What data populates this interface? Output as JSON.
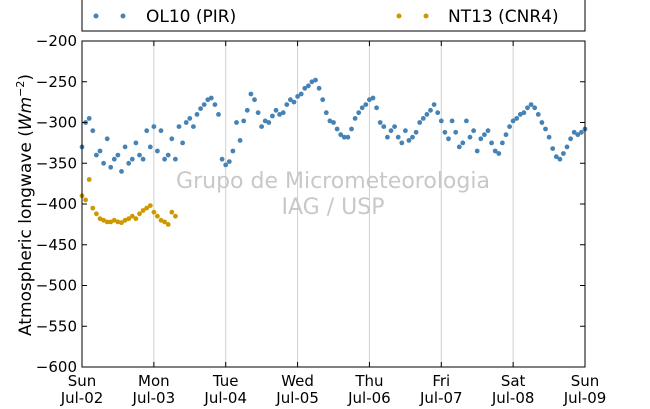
{
  "chart_data": {
    "type": "scatter",
    "title": "",
    "xlabel": "",
    "ylabel_text": "Atmospheric longwave (",
    "ylabel_unit": "Wm",
    "ylabel_exp": "−2",
    "ylabel_close": ")",
    "ylim": [
      -600,
      -200
    ],
    "yticks": [
      -200,
      -250,
      -300,
      -350,
      -400,
      -450,
      -500,
      -550,
      -600
    ],
    "ytick_labels": [
      "−200",
      "−250",
      "−300",
      "−350",
      "−400",
      "−450",
      "−500",
      "−550",
      "−600"
    ],
    "xlim": [
      0,
      7
    ],
    "xticks": [
      {
        "day": 0,
        "dow": "Sun",
        "date": "Jul-02"
      },
      {
        "day": 1,
        "dow": "Mon",
        "date": "Jul-03"
      },
      {
        "day": 2,
        "dow": "Tue",
        "date": "Jul-04"
      },
      {
        "day": 3,
        "dow": "Wed",
        "date": "Jul-05"
      },
      {
        "day": 4,
        "dow": "Thu",
        "date": "Jul-06"
      },
      {
        "day": 5,
        "dow": "Fri",
        "date": "Jul-07"
      },
      {
        "day": 6,
        "dow": "Sat",
        "date": "Jul-08"
      },
      {
        "day": 7,
        "dow": "Sun",
        "date": "Jul-09"
      }
    ],
    "grid": true,
    "legend_position": "top",
    "series": [
      {
        "name": "OL10 (PIR)",
        "color": "#4682b4",
        "points": [
          [
            0.0,
            -330
          ],
          [
            0.05,
            -300
          ],
          [
            0.1,
            -295
          ],
          [
            0.15,
            -310
          ],
          [
            0.2,
            -340
          ],
          [
            0.25,
            -335
          ],
          [
            0.3,
            -350
          ],
          [
            0.35,
            -320
          ],
          [
            0.4,
            -355
          ],
          [
            0.45,
            -345
          ],
          [
            0.5,
            -340
          ],
          [
            0.55,
            -360
          ],
          [
            0.6,
            -330
          ],
          [
            0.65,
            -350
          ],
          [
            0.7,
            -345
          ],
          [
            0.75,
            -325
          ],
          [
            0.8,
            -340
          ],
          [
            0.85,
            -345
          ],
          [
            0.9,
            -310
          ],
          [
            0.95,
            -330
          ],
          [
            1.0,
            -305
          ],
          [
            1.05,
            -335
          ],
          [
            1.1,
            -310
          ],
          [
            1.15,
            -345
          ],
          [
            1.2,
            -340
          ],
          [
            1.25,
            -320
          ],
          [
            1.3,
            -345
          ],
          [
            1.35,
            -305
          ],
          [
            1.4,
            -325
          ],
          [
            1.45,
            -300
          ],
          [
            1.5,
            -295
          ],
          [
            1.55,
            -305
          ],
          [
            1.6,
            -290
          ],
          [
            1.65,
            -283
          ],
          [
            1.7,
            -278
          ],
          [
            1.75,
            -272
          ],
          [
            1.8,
            -270
          ],
          [
            1.85,
            -278
          ],
          [
            1.9,
            -290
          ],
          [
            1.95,
            -345
          ],
          [
            2.0,
            -352
          ],
          [
            2.05,
            -348
          ],
          [
            2.1,
            -335
          ],
          [
            2.15,
            -300
          ],
          [
            2.2,
            -322
          ],
          [
            2.25,
            -298
          ],
          [
            2.3,
            -285
          ],
          [
            2.35,
            -265
          ],
          [
            2.4,
            -272
          ],
          [
            2.45,
            -288
          ],
          [
            2.5,
            -305
          ],
          [
            2.55,
            -298
          ],
          [
            2.6,
            -300
          ],
          [
            2.65,
            -292
          ],
          [
            2.7,
            -285
          ],
          [
            2.75,
            -290
          ],
          [
            2.8,
            -288
          ],
          [
            2.85,
            -278
          ],
          [
            2.9,
            -272
          ],
          [
            2.95,
            -275
          ],
          [
            3.0,
            -268
          ],
          [
            3.05,
            -265
          ],
          [
            3.1,
            -258
          ],
          [
            3.15,
            -255
          ],
          [
            3.2,
            -250
          ],
          [
            3.25,
            -248
          ],
          [
            3.3,
            -258
          ],
          [
            3.35,
            -272
          ],
          [
            3.4,
            -288
          ],
          [
            3.45,
            -298
          ],
          [
            3.5,
            -300
          ],
          [
            3.55,
            -308
          ],
          [
            3.6,
            -315
          ],
          [
            3.65,
            -318
          ],
          [
            3.7,
            -318
          ],
          [
            3.75,
            -308
          ],
          [
            3.8,
            -295
          ],
          [
            3.85,
            -288
          ],
          [
            3.9,
            -282
          ],
          [
            3.95,
            -278
          ],
          [
            4.0,
            -272
          ],
          [
            4.05,
            -270
          ],
          [
            4.1,
            -282
          ],
          [
            4.15,
            -300
          ],
          [
            4.2,
            -305
          ],
          [
            4.25,
            -318
          ],
          [
            4.3,
            -310
          ],
          [
            4.35,
            -305
          ],
          [
            4.4,
            -318
          ],
          [
            4.45,
            -325
          ],
          [
            4.5,
            -310
          ],
          [
            4.55,
            -322
          ],
          [
            4.6,
            -318
          ],
          [
            4.65,
            -312
          ],
          [
            4.7,
            -300
          ],
          [
            4.75,
            -295
          ],
          [
            4.8,
            -290
          ],
          [
            4.85,
            -285
          ],
          [
            4.9,
            -278
          ],
          [
            4.95,
            -288
          ],
          [
            5.0,
            -298
          ],
          [
            5.05,
            -312
          ],
          [
            5.1,
            -320
          ],
          [
            5.15,
            -298
          ],
          [
            5.2,
            -312
          ],
          [
            5.25,
            -330
          ],
          [
            5.3,
            -325
          ],
          [
            5.35,
            -298
          ],
          [
            5.4,
            -318
          ],
          [
            5.45,
            -310
          ],
          [
            5.5,
            -335
          ],
          [
            5.55,
            -320
          ],
          [
            5.6,
            -315
          ],
          [
            5.65,
            -310
          ],
          [
            5.7,
            -325
          ],
          [
            5.75,
            -335
          ],
          [
            5.8,
            -338
          ],
          [
            5.85,
            -325
          ],
          [
            5.9,
            -315
          ],
          [
            5.95,
            -305
          ],
          [
            6.0,
            -298
          ],
          [
            6.05,
            -295
          ],
          [
            6.1,
            -290
          ],
          [
            6.15,
            -288
          ],
          [
            6.2,
            -282
          ],
          [
            6.25,
            -278
          ],
          [
            6.3,
            -282
          ],
          [
            6.35,
            -290
          ],
          [
            6.4,
            -300
          ],
          [
            6.45,
            -308
          ],
          [
            6.5,
            -318
          ],
          [
            6.55,
            -332
          ],
          [
            6.6,
            -342
          ],
          [
            6.65,
            -345
          ],
          [
            6.7,
            -338
          ],
          [
            6.75,
            -330
          ],
          [
            6.8,
            -320
          ],
          [
            6.85,
            -312
          ],
          [
            6.9,
            -315
          ],
          [
            6.95,
            -312
          ],
          [
            7.0,
            -308
          ]
        ]
      },
      {
        "name": "NT13 (CNR4)",
        "color": "#cc9900",
        "points": [
          [
            0.0,
            -390
          ],
          [
            0.05,
            -395
          ],
          [
            0.1,
            -370
          ],
          [
            0.15,
            -405
          ],
          [
            0.2,
            -412
          ],
          [
            0.25,
            -418
          ],
          [
            0.3,
            -420
          ],
          [
            0.35,
            -422
          ],
          [
            0.4,
            -422
          ],
          [
            0.45,
            -420
          ],
          [
            0.5,
            -422
          ],
          [
            0.55,
            -423
          ],
          [
            0.6,
            -420
          ],
          [
            0.65,
            -418
          ],
          [
            0.7,
            -415
          ],
          [
            0.75,
            -418
          ],
          [
            0.8,
            -412
          ],
          [
            0.85,
            -408
          ],
          [
            0.9,
            -405
          ],
          [
            0.95,
            -402
          ],
          [
            1.0,
            -410
          ],
          [
            1.05,
            -415
          ],
          [
            1.1,
            -420
          ],
          [
            1.15,
            -422
          ],
          [
            1.2,
            -425
          ],
          [
            1.25,
            -410
          ],
          [
            1.3,
            -415
          ]
        ]
      }
    ],
    "watermark": [
      "Grupo de Micrometeorologia",
      "IAG / USP"
    ]
  }
}
